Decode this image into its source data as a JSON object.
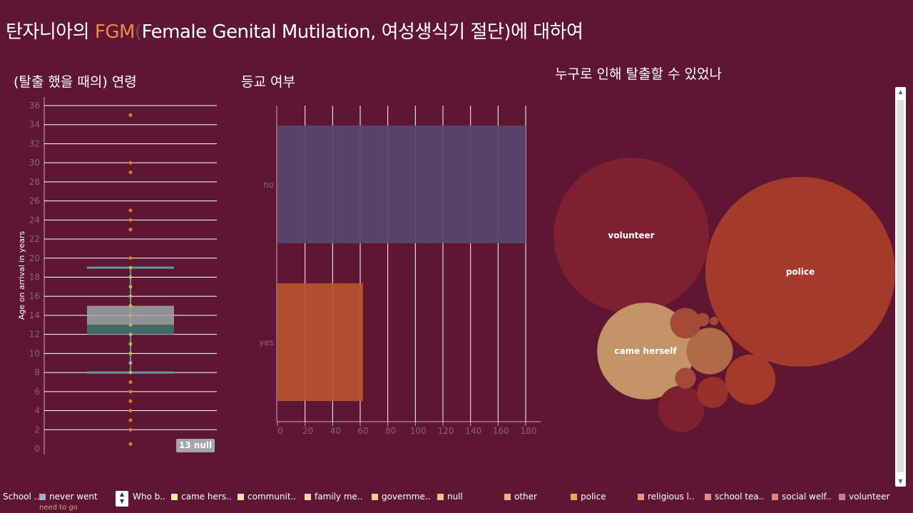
{
  "title": {
    "prefix": "탄자니아의 ",
    "accent": "FGM",
    "paren": "(",
    "rest": "Female Genital Mutilation, 여성생식기 절단)에 대하여"
  },
  "sections": {
    "age": "(탈출 했을 때의) 연령",
    "school": "등교 여부",
    "who": "누구로 인해 탈출할 수 있었나"
  },
  "colors": {
    "background": "#5e1633",
    "accent": "#ef8a3f",
    "bar_no": "#58476e",
    "bar_yes": "#b9542e",
    "whisker": "#5a9e99",
    "box_upper": "#9aa6a6",
    "box_lower": "#3f6b6a"
  },
  "chart_data": [
    {
      "type": "box",
      "ylabel": "Age on arrival in years",
      "ylim": [
        0,
        36
      ],
      "yticks": [
        0,
        2,
        4,
        6,
        8,
        10,
        12,
        14,
        16,
        18,
        20,
        22,
        24,
        26,
        28,
        30,
        32,
        34,
        36
      ],
      "box": {
        "whisker_low": 8,
        "q1": 12,
        "median": 13,
        "q3": 15,
        "whisker_high": 19
      },
      "points": [
        35,
        30,
        29,
        25,
        24,
        23,
        20,
        19,
        18,
        17,
        16,
        15,
        14,
        13,
        12,
        11,
        10,
        9,
        8,
        7,
        6,
        5,
        4,
        3,
        2,
        0.5
      ],
      "null_count": "13 null",
      "grid": true
    },
    {
      "type": "bar",
      "orientation": "horizontal",
      "categories": [
        "no",
        "yes"
      ],
      "values": [
        180,
        62
      ],
      "xlim": [
        0,
        190
      ],
      "xticks": [
        0,
        20,
        40,
        60,
        80,
        100,
        120,
        140,
        160,
        180
      ],
      "grid": true
    },
    {
      "type": "bubble",
      "bubbles": [
        {
          "label": "police",
          "value": 100
        },
        {
          "label": "volunteer",
          "value": 67
        },
        {
          "label": "came herself",
          "value": 26
        },
        {
          "label": "",
          "value": 7
        },
        {
          "label": "",
          "value": 6
        },
        {
          "label": "",
          "value": 6
        },
        {
          "label": "",
          "value": 2.7
        },
        {
          "label": "",
          "value": 2.6
        },
        {
          "label": "",
          "value": 1.2
        },
        {
          "label": "",
          "value": 0.5
        },
        {
          "label": "",
          "value": 0.2
        }
      ]
    }
  ],
  "legend": {
    "school_title": "School ..",
    "school_items": [
      {
        "label": "never went",
        "color": "#9fb0cc"
      }
    ],
    "school_cut": "need to go",
    "who_title": "Who b..",
    "who_items": [
      {
        "label": "came hers..",
        "color": "#f7e6b3"
      },
      {
        "label": "communit..",
        "color": "#f7e2ad"
      },
      {
        "label": "family me..",
        "color": "#f6d4a2"
      },
      {
        "label": "governme..",
        "color": "#f5c99a"
      },
      {
        "label": "null",
        "color": "#f3bf8d"
      },
      {
        "label": "other",
        "color": "#f0b07f"
      },
      {
        "label": "police",
        "color": "#eea079"
      },
      {
        "label": "religious l..",
        "color": "#ea9480"
      },
      {
        "label": "school tea..",
        "color": "#e48b86"
      },
      {
        "label": "social welf..",
        "color": "#dc8489"
      },
      {
        "label": "volunteer",
        "color": "#c77e8c"
      }
    ]
  }
}
